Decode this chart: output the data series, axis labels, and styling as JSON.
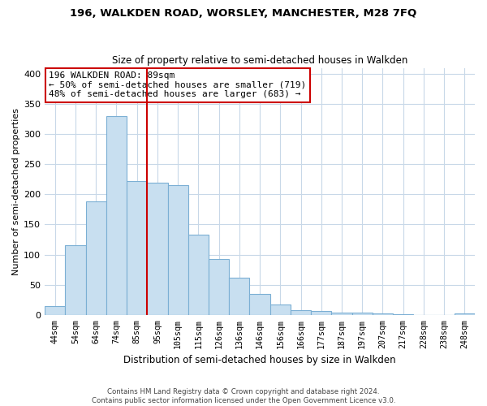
{
  "title": "196, WALKDEN ROAD, WORSLEY, MANCHESTER, M28 7FQ",
  "subtitle": "Size of property relative to semi-detached houses in Walkden",
  "xlabel": "Distribution of semi-detached houses by size in Walkden",
  "ylabel": "Number of semi-detached properties",
  "bar_color": "#c8dff0",
  "bar_edge_color": "#7bafd4",
  "annotation_box_edge": "#cc0000",
  "annotation_line_color": "#cc0000",
  "annotation_title": "196 WALKDEN ROAD: 89sqm",
  "annotation_smaller": "← 50% of semi-detached houses are smaller (719)",
  "annotation_larger": "48% of semi-detached houses are larger (683) →",
  "categories": [
    "44sqm",
    "54sqm",
    "64sqm",
    "74sqm",
    "85sqm",
    "95sqm",
    "105sqm",
    "115sqm",
    "126sqm",
    "136sqm",
    "146sqm",
    "156sqm",
    "166sqm",
    "177sqm",
    "187sqm",
    "197sqm",
    "207sqm",
    "217sqm",
    "228sqm",
    "238sqm",
    "248sqm"
  ],
  "values": [
    15,
    115,
    188,
    330,
    222,
    220,
    215,
    133,
    93,
    62,
    35,
    17,
    8,
    6,
    4,
    4,
    2,
    1,
    0,
    0,
    2
  ],
  "vline_bar_index": 4,
  "ylim": [
    0,
    410
  ],
  "yticks": [
    0,
    50,
    100,
    150,
    200,
    250,
    300,
    350,
    400
  ],
  "footer_line1": "Contains HM Land Registry data © Crown copyright and database right 2024.",
  "footer_line2": "Contains public sector information licensed under the Open Government Licence v3.0."
}
